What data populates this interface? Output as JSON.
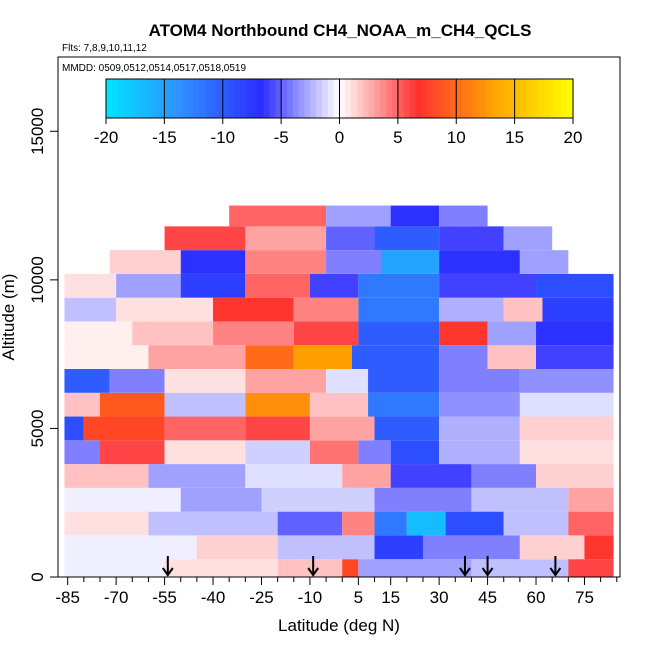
{
  "chart_data": {
    "type": "heatmap",
    "title": "ATOM4 Northbound CH4_NOAA_m_CH4_QCLS",
    "flights_label": "Flts: 7,8,9,10,11,12",
    "dates_label": "MMDD: 0509,0512,0514,0517,0518,0519",
    "xlabel": "Latitude (deg N)",
    "ylabel": "Altitude (m)",
    "xlim": [
      -88,
      86
    ],
    "ylim": [
      0,
      17500
    ],
    "x_ticks": [
      -85,
      -70,
      -55,
      -40,
      -25,
      -10,
      5,
      15,
      30,
      45,
      60,
      75
    ],
    "x_tick_labels": [
      "-85",
      "-70",
      "-55",
      "-40",
      "-25",
      "-10",
      "5",
      "15",
      "30",
      "45",
      "60",
      "75"
    ],
    "x_minor_ticks": [
      -80,
      -75,
      -65,
      -60,
      -50,
      -45,
      -35,
      -30,
      -20,
      -15,
      -5,
      0,
      10,
      20,
      25,
      35,
      40,
      50,
      55,
      65,
      70,
      80,
      85
    ],
    "y_ticks": [
      0,
      5000,
      10000,
      15000
    ],
    "y_tick_labels": [
      "0",
      "5000",
      "10000",
      "15000"
    ],
    "colorbar": {
      "min": -20,
      "max": 20,
      "ticks": [
        -20,
        -15,
        -10,
        -5,
        0,
        5,
        10,
        15,
        20
      ],
      "tick_labels": [
        "-20",
        "-15",
        "-10",
        "-5",
        "0",
        "5",
        "10",
        "15",
        "20"
      ],
      "colors": [
        "#00e5ff",
        "#2f8cff",
        "#2c2cff",
        "#ffffff",
        "#ff3030",
        "#ffa500",
        "#ffff00"
      ]
    },
    "flight_markers_lat": [
      -54,
      -9,
      38,
      45,
      66
    ],
    "cells": [
      {
        "lat": [
          -86,
          -55
        ],
        "alt": [
          0,
          600
        ],
        "v": -0.5
      },
      {
        "lat": [
          -55,
          -20
        ],
        "alt": [
          0,
          600
        ],
        "v": 1.0
      },
      {
        "lat": [
          -20,
          0
        ],
        "alt": [
          0,
          600
        ],
        "v": 2.0
      },
      {
        "lat": [
          0,
          5
        ],
        "alt": [
          0,
          600
        ],
        "v": 8.0
      },
      {
        "lat": [
          5,
          40
        ],
        "alt": [
          0,
          600
        ],
        "v": -3.0
      },
      {
        "lat": [
          40,
          70
        ],
        "alt": [
          0,
          600
        ],
        "v": -2.0
      },
      {
        "lat": [
          70,
          84
        ],
        "alt": [
          0,
          600
        ],
        "v": 6.0
      },
      {
        "lat": [
          -86,
          -45
        ],
        "alt": [
          600,
          1400
        ],
        "v": -0.5
      },
      {
        "lat": [
          -45,
          -20
        ],
        "alt": [
          600,
          1400
        ],
        "v": 1.5
      },
      {
        "lat": [
          -20,
          10
        ],
        "alt": [
          600,
          1400
        ],
        "v": -2.0
      },
      {
        "lat": [
          10,
          25
        ],
        "alt": [
          600,
          1400
        ],
        "v": -8.0
      },
      {
        "lat": [
          25,
          55
        ],
        "alt": [
          600,
          1400
        ],
        "v": -4.0
      },
      {
        "lat": [
          55,
          75
        ],
        "alt": [
          600,
          1400
        ],
        "v": 1.5
      },
      {
        "lat": [
          75,
          84
        ],
        "alt": [
          600,
          1400
        ],
        "v": 7.0
      },
      {
        "lat": [
          -86,
          -60
        ],
        "alt": [
          1400,
          2200
        ],
        "v": 1.0
      },
      {
        "lat": [
          -60,
          -20
        ],
        "alt": [
          1400,
          2200
        ],
        "v": -2.0
      },
      {
        "lat": [
          -20,
          0
        ],
        "alt": [
          1400,
          2200
        ],
        "v": -5.0
      },
      {
        "lat": [
          0,
          10
        ],
        "alt": [
          1400,
          2200
        ],
        "v": 4.0
      },
      {
        "lat": [
          10,
          20
        ],
        "alt": [
          1400,
          2200
        ],
        "v": -12.0
      },
      {
        "lat": [
          20,
          32
        ],
        "alt": [
          1400,
          2200
        ],
        "v": -17.0
      },
      {
        "lat": [
          32,
          50
        ],
        "alt": [
          1400,
          2200
        ],
        "v": -9.0
      },
      {
        "lat": [
          50,
          70
        ],
        "alt": [
          1400,
          2200
        ],
        "v": -2.0
      },
      {
        "lat": [
          70,
          84
        ],
        "alt": [
          1400,
          2200
        ],
        "v": 5.0
      },
      {
        "lat": [
          -86,
          -50
        ],
        "alt": [
          2200,
          3000
        ],
        "v": -0.5
      },
      {
        "lat": [
          -50,
          -25
        ],
        "alt": [
          2200,
          3000
        ],
        "v": -3.0
      },
      {
        "lat": [
          -25,
          10
        ],
        "alt": [
          2200,
          3000
        ],
        "v": -1.5
      },
      {
        "lat": [
          10,
          40
        ],
        "alt": [
          2200,
          3000
        ],
        "v": -4.0
      },
      {
        "lat": [
          40,
          70
        ],
        "alt": [
          2200,
          3000
        ],
        "v": -2.0
      },
      {
        "lat": [
          70,
          84
        ],
        "alt": [
          2200,
          3000
        ],
        "v": 3.0
      },
      {
        "lat": [
          -86,
          -60
        ],
        "alt": [
          3000,
          3800
        ],
        "v": 2.0
      },
      {
        "lat": [
          -60,
          -30
        ],
        "alt": [
          3000,
          3800
        ],
        "v": -3.0
      },
      {
        "lat": [
          -30,
          0
        ],
        "alt": [
          3000,
          3800
        ],
        "v": -1.0
      },
      {
        "lat": [
          0,
          15
        ],
        "alt": [
          3000,
          3800
        ],
        "v": 3.0
      },
      {
        "lat": [
          15,
          40
        ],
        "alt": [
          3000,
          3800
        ],
        "v": -6.0
      },
      {
        "lat": [
          40,
          60
        ],
        "alt": [
          3000,
          3800
        ],
        "v": -4.0
      },
      {
        "lat": [
          60,
          84
        ],
        "alt": [
          3000,
          3800
        ],
        "v": 1.5
      },
      {
        "lat": [
          -86,
          -75
        ],
        "alt": [
          3800,
          4600
        ],
        "v": -4.0
      },
      {
        "lat": [
          -75,
          -55
        ],
        "alt": [
          3800,
          4600
        ],
        "v": 6.0
      },
      {
        "lat": [
          -55,
          -30
        ],
        "alt": [
          3800,
          4600
        ],
        "v": 1.0
      },
      {
        "lat": [
          -30,
          -10
        ],
        "alt": [
          3800,
          4600
        ],
        "v": -1.5
      },
      {
        "lat": [
          -10,
          5
        ],
        "alt": [
          3800,
          4600
        ],
        "v": 4.5
      },
      {
        "lat": [
          5,
          15
        ],
        "alt": [
          3800,
          4600
        ],
        "v": -4.0
      },
      {
        "lat": [
          15,
          30
        ],
        "alt": [
          3800,
          4600
        ],
        "v": -9.0
      },
      {
        "lat": [
          30,
          55
        ],
        "alt": [
          3800,
          4600
        ],
        "v": -2.5
      },
      {
        "lat": [
          55,
          84
        ],
        "alt": [
          3800,
          4600
        ],
        "v": 1.0
      },
      {
        "lat": [
          -86,
          -80
        ],
        "alt": [
          4600,
          5400
        ],
        "v": -9.0
      },
      {
        "lat": [
          -80,
          -55
        ],
        "alt": [
          4600,
          5400
        ],
        "v": 8.0
      },
      {
        "lat": [
          -55,
          -30
        ],
        "alt": [
          4600,
          5400
        ],
        "v": 5.0
      },
      {
        "lat": [
          -30,
          -10
        ],
        "alt": [
          4600,
          5400
        ],
        "v": 6.0
      },
      {
        "lat": [
          -10,
          10
        ],
        "alt": [
          4600,
          5400
        ],
        "v": 3.0
      },
      {
        "lat": [
          10,
          30
        ],
        "alt": [
          4600,
          5400
        ],
        "v": -10.0
      },
      {
        "lat": [
          30,
          55
        ],
        "alt": [
          4600,
          5400
        ],
        "v": -2.5
      },
      {
        "lat": [
          55,
          84
        ],
        "alt": [
          4600,
          5400
        ],
        "v": 1.5
      },
      {
        "lat": [
          -86,
          -75
        ],
        "alt": [
          5400,
          6200
        ],
        "v": 2.0
      },
      {
        "lat": [
          -75,
          -55
        ],
        "alt": [
          5400,
          6200
        ],
        "v": 9.0
      },
      {
        "lat": [
          -55,
          -30
        ],
        "alt": [
          5400,
          6200
        ],
        "v": -2.0
      },
      {
        "lat": [
          -30,
          -10
        ],
        "alt": [
          5400,
          6200
        ],
        "v": 12.0
      },
      {
        "lat": [
          -10,
          8
        ],
        "alt": [
          5400,
          6200
        ],
        "v": 2.0
      },
      {
        "lat": [
          8,
          30
        ],
        "alt": [
          5400,
          6200
        ],
        "v": -12.0
      },
      {
        "lat": [
          30,
          55
        ],
        "alt": [
          5400,
          6200
        ],
        "v": -3.5
      },
      {
        "lat": [
          55,
          84
        ],
        "alt": [
          5400,
          6200
        ],
        "v": -1.0
      },
      {
        "lat": [
          -86,
          -72
        ],
        "alt": [
          6200,
          7000
        ],
        "v": -10.0
      },
      {
        "lat": [
          -72,
          -55
        ],
        "alt": [
          6200,
          7000
        ],
        "v": -4.0
      },
      {
        "lat": [
          -55,
          -30
        ],
        "alt": [
          6200,
          7000
        ],
        "v": 1.0
      },
      {
        "lat": [
          -30,
          -5
        ],
        "alt": [
          6200,
          7000
        ],
        "v": 3.0
      },
      {
        "lat": [
          -5,
          8
        ],
        "alt": [
          6200,
          7000
        ],
        "v": -1.0
      },
      {
        "lat": [
          8,
          30
        ],
        "alt": [
          6200,
          7000
        ],
        "v": -10.0
      },
      {
        "lat": [
          30,
          55
        ],
        "alt": [
          6200,
          7000
        ],
        "v": -4.0
      },
      {
        "lat": [
          55,
          84
        ],
        "alt": [
          6200,
          7000
        ],
        "v": -3.5
      },
      {
        "lat": [
          -86,
          -60
        ],
        "alt": [
          7000,
          7800
        ],
        "v": 0.5
      },
      {
        "lat": [
          -60,
          -30
        ],
        "alt": [
          7000,
          7800
        ],
        "v": 3.0
      },
      {
        "lat": [
          -30,
          -15
        ],
        "alt": [
          7000,
          7800
        ],
        "v": 10.0
      },
      {
        "lat": [
          -15,
          3
        ],
        "alt": [
          7000,
          7800
        ],
        "v": 13.0
      },
      {
        "lat": [
          3,
          30
        ],
        "alt": [
          7000,
          7800
        ],
        "v": -10.0
      },
      {
        "lat": [
          30,
          45
        ],
        "alt": [
          7000,
          7800
        ],
        "v": -4.0
      },
      {
        "lat": [
          45,
          60
        ],
        "alt": [
          7000,
          7800
        ],
        "v": 2.0
      },
      {
        "lat": [
          60,
          84
        ],
        "alt": [
          7000,
          7800
        ],
        "v": -6.0
      },
      {
        "lat": [
          -86,
          -65
        ],
        "alt": [
          7800,
          8600
        ],
        "v": 0.5
      },
      {
        "lat": [
          -65,
          -40
        ],
        "alt": [
          7800,
          8600
        ],
        "v": 2.0
      },
      {
        "lat": [
          -40,
          -15
        ],
        "alt": [
          7800,
          8600
        ],
        "v": 4.0
      },
      {
        "lat": [
          -15,
          5
        ],
        "alt": [
          7800,
          8600
        ],
        "v": 6.0
      },
      {
        "lat": [
          5,
          30
        ],
        "alt": [
          7800,
          8600
        ],
        "v": -10.0
      },
      {
        "lat": [
          30,
          45
        ],
        "alt": [
          7800,
          8600
        ],
        "v": 7.0
      },
      {
        "lat": [
          45,
          60
        ],
        "alt": [
          7800,
          8600
        ],
        "v": -3.0
      },
      {
        "lat": [
          60,
          84
        ],
        "alt": [
          7800,
          8600
        ],
        "v": -7.0
      },
      {
        "lat": [
          -86,
          -70
        ],
        "alt": [
          8600,
          9400
        ],
        "v": -2.0
      },
      {
        "lat": [
          -70,
          -40
        ],
        "alt": [
          8600,
          9400
        ],
        "v": 1.0
      },
      {
        "lat": [
          -40,
          -15
        ],
        "alt": [
          8600,
          9400
        ],
        "v": 7.0
      },
      {
        "lat": [
          -15,
          5
        ],
        "alt": [
          8600,
          9400
        ],
        "v": 4.0
      },
      {
        "lat": [
          5,
          30
        ],
        "alt": [
          8600,
          9400
        ],
        "v": -12.0
      },
      {
        "lat": [
          30,
          50
        ],
        "alt": [
          8600,
          9400
        ],
        "v": -2.5
      },
      {
        "lat": [
          50,
          62
        ],
        "alt": [
          8600,
          9400
        ],
        "v": 2.0
      },
      {
        "lat": [
          62,
          84
        ],
        "alt": [
          8600,
          9400
        ],
        "v": -8.0
      },
      {
        "lat": [
          -86,
          -70
        ],
        "alt": [
          9400,
          10200
        ],
        "v": 1.0
      },
      {
        "lat": [
          -70,
          -50
        ],
        "alt": [
          9400,
          10200
        ],
        "v": -3.0
      },
      {
        "lat": [
          -50,
          -30
        ],
        "alt": [
          9400,
          10200
        ],
        "v": -8.0
      },
      {
        "lat": [
          -30,
          -10
        ],
        "alt": [
          9400,
          10200
        ],
        "v": 5.0
      },
      {
        "lat": [
          -10,
          5
        ],
        "alt": [
          9400,
          10200
        ],
        "v": -6.0
      },
      {
        "lat": [
          5,
          30
        ],
        "alt": [
          9400,
          10200
        ],
        "v": -12.0
      },
      {
        "lat": [
          30,
          60
        ],
        "alt": [
          9400,
          10200
        ],
        "v": -6.0
      },
      {
        "lat": [
          60,
          84
        ],
        "alt": [
          9400,
          10200
        ],
        "v": -9.0
      },
      {
        "lat": [
          -72,
          -50
        ],
        "alt": [
          10200,
          11000
        ],
        "v": 1.5
      },
      {
        "lat": [
          -50,
          -30
        ],
        "alt": [
          10200,
          11000
        ],
        "v": -7.0
      },
      {
        "lat": [
          -30,
          -5
        ],
        "alt": [
          10200,
          11000
        ],
        "v": 4.0
      },
      {
        "lat": [
          -5,
          12
        ],
        "alt": [
          10200,
          11000
        ],
        "v": -4.0
      },
      {
        "lat": [
          12,
          30
        ],
        "alt": [
          10200,
          11000
        ],
        "v": -15.0
      },
      {
        "lat": [
          30,
          55
        ],
        "alt": [
          10200,
          11000
        ],
        "v": -7.0
      },
      {
        "lat": [
          55,
          70
        ],
        "alt": [
          10200,
          11000
        ],
        "v": -3.0
      },
      {
        "lat": [
          -55,
          -30
        ],
        "alt": [
          11000,
          11800
        ],
        "v": 6.0
      },
      {
        "lat": [
          -30,
          -5
        ],
        "alt": [
          11000,
          11800
        ],
        "v": 3.0
      },
      {
        "lat": [
          -5,
          10
        ],
        "alt": [
          11000,
          11800
        ],
        "v": -5.0
      },
      {
        "lat": [
          10,
          30
        ],
        "alt": [
          11000,
          11800
        ],
        "v": -10.0
      },
      {
        "lat": [
          30,
          50
        ],
        "alt": [
          11000,
          11800
        ],
        "v": -6.0
      },
      {
        "lat": [
          50,
          65
        ],
        "alt": [
          11000,
          11800
        ],
        "v": -3.0
      },
      {
        "lat": [
          -35,
          -5
        ],
        "alt": [
          11800,
          12500
        ],
        "v": 5.0
      },
      {
        "lat": [
          -5,
          15
        ],
        "alt": [
          11800,
          12500
        ],
        "v": -3.0
      },
      {
        "lat": [
          15,
          30
        ],
        "alt": [
          11800,
          12500
        ],
        "v": -7.0
      },
      {
        "lat": [
          30,
          45
        ],
        "alt": [
          11800,
          12500
        ],
        "v": -4.0
      }
    ]
  }
}
